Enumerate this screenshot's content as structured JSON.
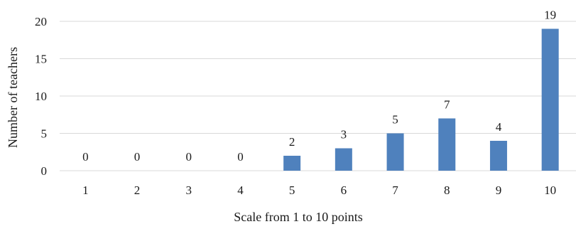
{
  "chart_data": {
    "type": "bar",
    "categories": [
      "1",
      "2",
      "3",
      "4",
      "5",
      "6",
      "7",
      "8",
      "9",
      "10"
    ],
    "values": [
      0,
      0,
      0,
      0,
      2,
      3,
      5,
      7,
      4,
      19
    ],
    "data_labels": [
      "0",
      "0",
      "0",
      "0",
      "2",
      "3",
      "5",
      "7",
      "4",
      "19"
    ],
    "xlabel": "Scale from 1 to 10 points",
    "ylabel": "Number of teachers",
    "ylim": [
      0,
      20
    ],
    "yticks": [
      "0",
      "5",
      "10",
      "15",
      "20"
    ],
    "grid": true,
    "bar_color": "#4f81bd"
  }
}
